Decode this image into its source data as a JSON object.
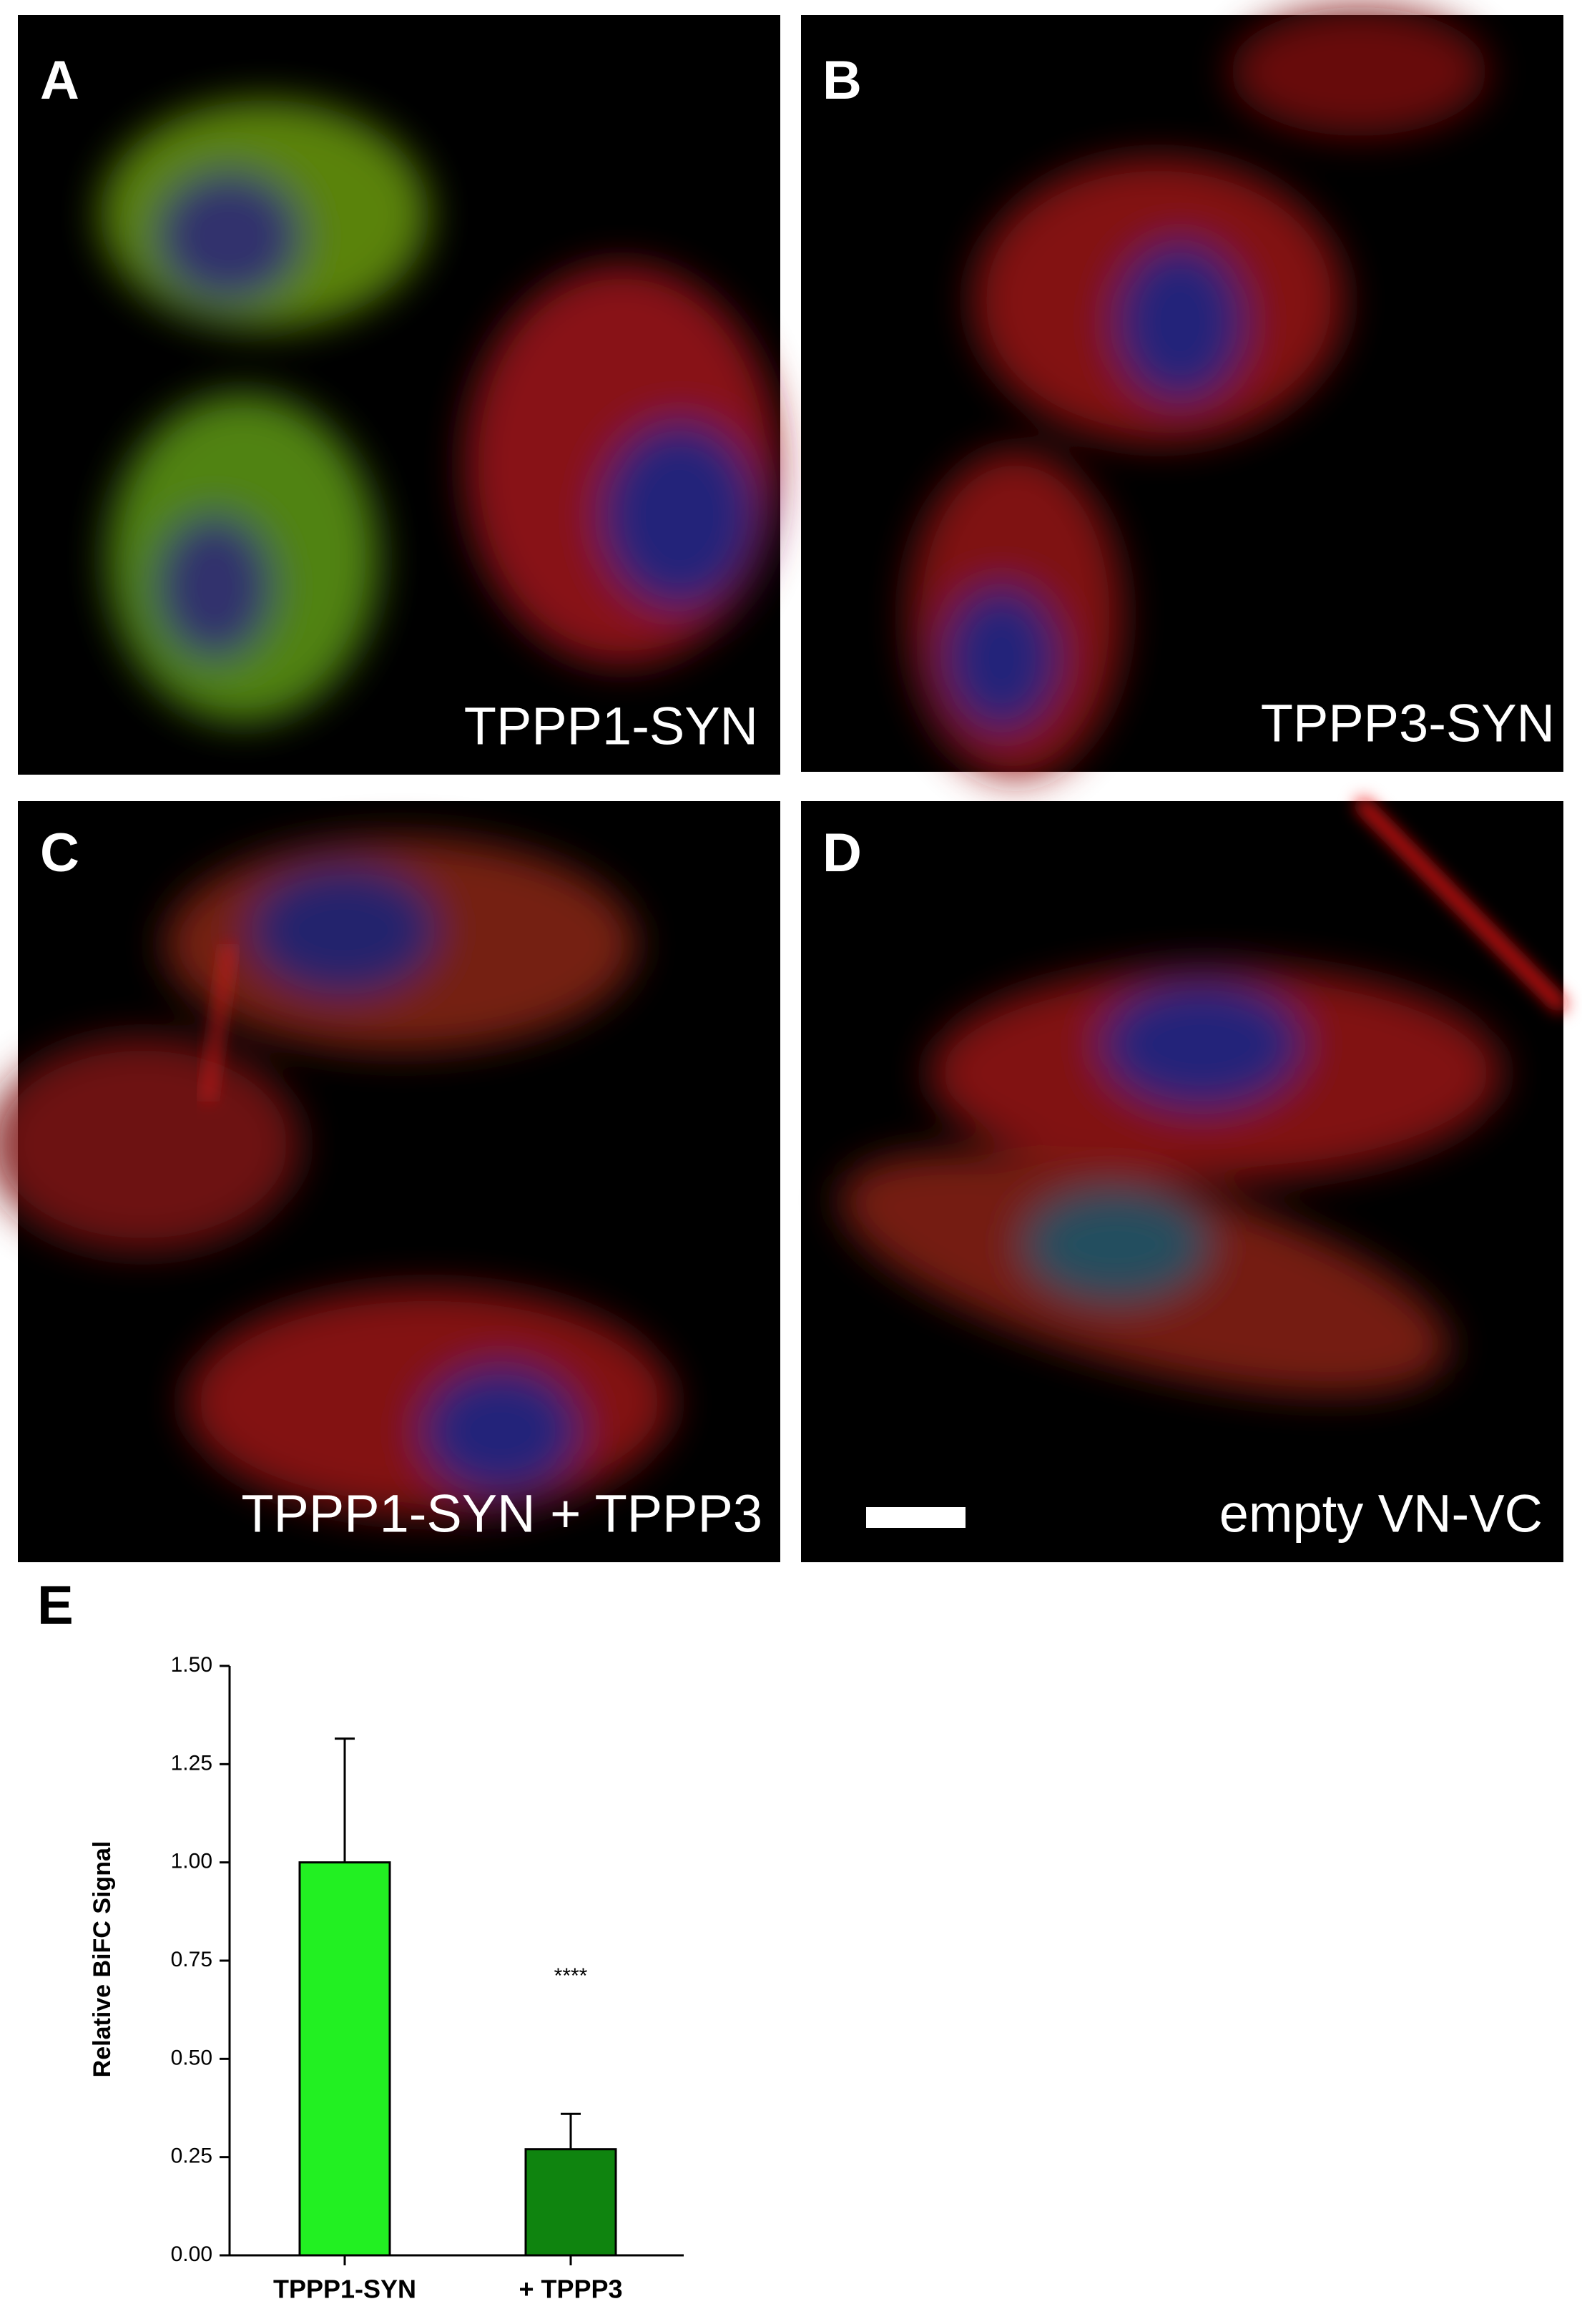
{
  "panels": [
    {
      "letter": "A",
      "caption": "TPPP1-SYN"
    },
    {
      "letter": "B",
      "caption": "TPPP3-SYN"
    },
    {
      "letter": "C",
      "caption": "TPPP1-SYN + TPPP3"
    },
    {
      "letter": "D",
      "caption": "empty VN-VC"
    }
  ],
  "chart_data": {
    "type": "bar",
    "letter": "E",
    "ylabel": "Relative BiFC Signal",
    "categories": [
      "TPPP1-SYN",
      "+ TPPP3"
    ],
    "values": [
      1.0,
      0.27
    ],
    "errors": [
      0.315,
      0.09
    ],
    "colors": [
      "#22f022",
      "#0f840f"
    ],
    "annotations": [
      {
        "text": "****",
        "category": 1
      }
    ],
    "ylim": [
      0,
      1.5
    ],
    "yticks": [
      {
        "value": 0,
        "label": "0.00"
      },
      {
        "value": 0.25,
        "label": "0.25"
      },
      {
        "value": 0.5,
        "label": "0.50"
      },
      {
        "value": 0.75,
        "label": "0.75"
      },
      {
        "value": 1,
        "label": "1.00"
      },
      {
        "value": 1.25,
        "label": "1.25"
      },
      {
        "value": 1.5,
        "label": "1.50"
      }
    ]
  }
}
